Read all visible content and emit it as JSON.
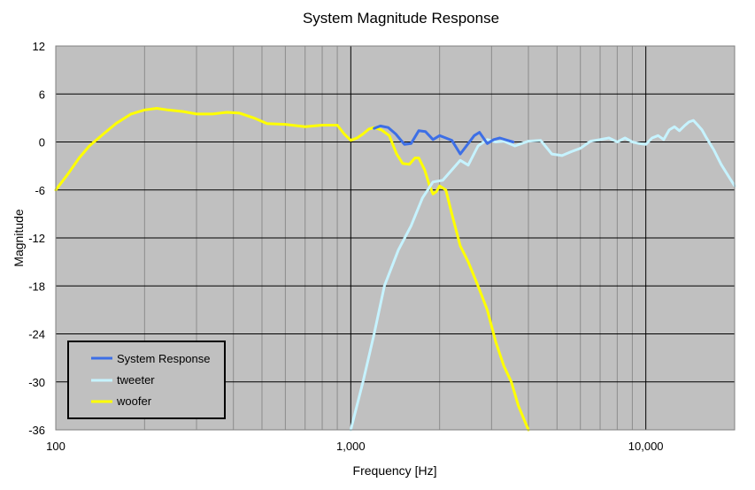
{
  "chart_data": {
    "type": "line",
    "title": "System Magnitude Response",
    "xlabel": "Frequency [Hz]",
    "ylabel": "Magnitude",
    "xscale": "log",
    "xlim": [
      100,
      20000
    ],
    "ylim": [
      -36,
      12
    ],
    "x_ticks": [
      100,
      1000,
      10000
    ],
    "x_tick_labels": [
      "100",
      "1,000",
      "10,000"
    ],
    "y_ticks": [
      12,
      6,
      0,
      -6,
      -12,
      -18,
      -24,
      -30,
      -36
    ],
    "y_tick_labels": [
      "12",
      "6",
      "0",
      "-6",
      "-12",
      "-18",
      "-24",
      "-30",
      "-36"
    ],
    "grid": true,
    "plot_background": "#c0c0c0",
    "legend_position": "bottom-left",
    "series": [
      {
        "name": "System Response",
        "color": "#3d6fe6",
        "x": [
          1200,
          1260,
          1340,
          1420,
          1520,
          1600,
          1700,
          1790,
          1900,
          2000,
          2100,
          2200,
          2350,
          2500,
          2620,
          2730,
          2900,
          3050,
          3200,
          3400,
          3550
        ],
        "y": [
          1.7,
          2.0,
          1.8,
          1.0,
          -0.3,
          -0.2,
          1.4,
          1.3,
          0.3,
          0.8,
          0.5,
          0.2,
          -1.5,
          -0.2,
          0.8,
          1.2,
          -0.2,
          0.3,
          0.5,
          0.2,
          0.0
        ]
      },
      {
        "name": "tweeter",
        "color": "#c6f3ff",
        "x": [
          1000,
          1100,
          1200,
          1300,
          1450,
          1600,
          1750,
          1900,
          2050,
          2200,
          2350,
          2500,
          2700,
          2900,
          3100,
          3300,
          3600,
          4000,
          4400,
          4800,
          5200,
          5600,
          6000,
          6500,
          7000,
          7500,
          8000,
          8500,
          9000,
          9500,
          10000,
          10500,
          11000,
          11500,
          12000,
          12500,
          13000,
          13500,
          14000,
          14500,
          15000,
          15500,
          16000,
          17000,
          18000,
          19000,
          20000
        ],
        "y": [
          -36,
          -30,
          -24,
          -18,
          -13.5,
          -10.5,
          -7.0,
          -5.0,
          -4.8,
          -3.5,
          -2.3,
          -2.9,
          -0.5,
          0.3,
          0.0,
          0.1,
          -0.5,
          0.1,
          0.2,
          -1.5,
          -1.7,
          -1.2,
          -0.8,
          0.1,
          0.3,
          0.5,
          0.0,
          0.5,
          0.0,
          -0.2,
          -0.3,
          0.5,
          0.8,
          0.3,
          1.5,
          1.9,
          1.4,
          2.0,
          2.5,
          2.7,
          2.1,
          1.5,
          0.6,
          -1.0,
          -2.8,
          -4.2,
          -5.5
        ]
      },
      {
        "name": "woofer",
        "color": "#ffff00",
        "x": [
          100,
          110,
          120,
          130,
          145,
          160,
          180,
          200,
          220,
          240,
          270,
          300,
          340,
          380,
          420,
          470,
          520,
          600,
          700,
          800,
          900,
          950,
          1000,
          1050,
          1100,
          1150,
          1200,
          1270,
          1350,
          1430,
          1500,
          1580,
          1650,
          1700,
          1780,
          1850,
          1900,
          1950,
          2000,
          2100,
          2200,
          2350,
          2500,
          2700,
          2900,
          3100,
          3300,
          3500,
          3700,
          4000
        ],
        "y": [
          -6.0,
          -4.0,
          -2.0,
          -0.5,
          1.0,
          2.3,
          3.5,
          4.0,
          4.2,
          4.0,
          3.8,
          3.5,
          3.5,
          3.7,
          3.6,
          3.0,
          2.3,
          2.2,
          1.9,
          2.1,
          2.1,
          1.0,
          0.2,
          0.5,
          1.0,
          1.6,
          1.8,
          1.5,
          0.8,
          -1.5,
          -2.7,
          -2.8,
          -2.0,
          -2.0,
          -3.5,
          -5.5,
          -6.5,
          -6.2,
          -5.5,
          -6.0,
          -9.0,
          -13.0,
          -15.0,
          -18.0,
          -21.0,
          -25.0,
          -28.0,
          -30.0,
          -33.0,
          -36.0
        ]
      }
    ]
  }
}
